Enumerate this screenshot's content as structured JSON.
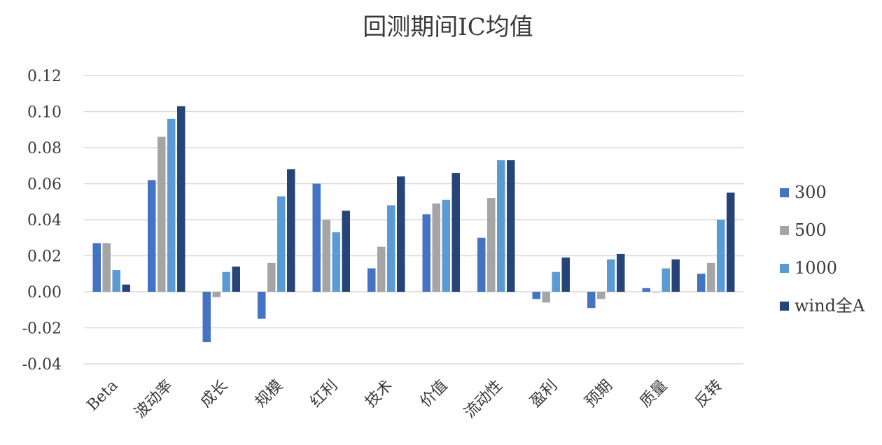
{
  "chart_data": {
    "type": "bar",
    "title": "回测期间IC均值",
    "categories": [
      "Beta",
      "波动率",
      "成长",
      "规模",
      "红利",
      "技术",
      "价值",
      "流动性",
      "盈利",
      "预期",
      "质量",
      "反转"
    ],
    "series": [
      {
        "name": "300",
        "color": "#4472c4",
        "values": [
          0.027,
          0.062,
          -0.028,
          -0.015,
          0.06,
          0.013,
          0.043,
          0.03,
          -0.004,
          -0.009,
          0.002,
          0.01
        ]
      },
      {
        "name": "500",
        "color": "#a5a5a5",
        "values": [
          0.027,
          0.086,
          -0.003,
          0.016,
          0.04,
          0.025,
          0.049,
          0.052,
          -0.006,
          -0.004,
          0.0,
          0.016
        ]
      },
      {
        "name": "1000",
        "color": "#5b9bd5",
        "values": [
          0.012,
          0.096,
          0.011,
          0.053,
          0.033,
          0.048,
          0.051,
          0.073,
          0.011,
          0.018,
          0.013,
          0.04
        ]
      },
      {
        "name": "wind全A",
        "color": "#264478",
        "values": [
          0.004,
          0.103,
          0.014,
          0.068,
          0.045,
          0.064,
          0.066,
          0.073,
          0.019,
          0.021,
          0.018,
          0.055
        ]
      }
    ],
    "yticks": [
      "0.12",
      "0.10",
      "0.08",
      "0.06",
      "0.04",
      "0.02",
      "0.00",
      "-0.02",
      "-0.04"
    ],
    "ylim": [
      -0.04,
      0.12
    ],
    "xlabel": "",
    "ylabel": "",
    "grid": true,
    "legend_position": "right"
  }
}
